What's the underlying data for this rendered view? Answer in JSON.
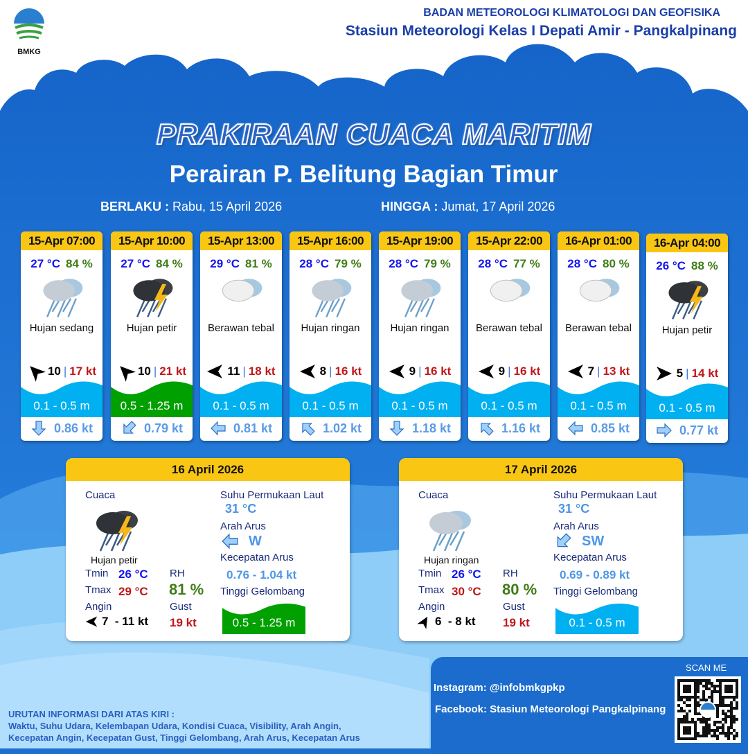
{
  "header": {
    "logo_text": "BMKG",
    "org": "BADAN METEOROLOGI KLIMATOLOGI DAN GEOFISIKA",
    "station": "Stasiun Meteorologi Kelas I Depati Amir - Pangkalpinang"
  },
  "title": "PRAKIRAAN CUACA MARITIM",
  "subtitle": "Perairan P. Belitung Bagian Timur",
  "validity": {
    "from_label": "BERLAKU :",
    "from": "Rabu, 15 April 2026",
    "to_label": "HINGGA :",
    "to": "Jumat, 17 April 2026"
  },
  "colors": {
    "wave_low": "#00b0f0",
    "wave_mid": "#00a000",
    "header_yellow": "#f9c713",
    "bg_blue": "#1e6fd0"
  },
  "forecasts": [
    {
      "time": "15-Apr 07:00",
      "temp": "27 °C",
      "rh": "84 %",
      "icon": "moderate-rain",
      "condition": "Hujan sedang",
      "wind_angle": 225,
      "wind": "10",
      "gust": "17 kt",
      "wave": "0.1 - 0.5 m",
      "wave_level": "low",
      "current_angle": 90,
      "current": "0.86 kt"
    },
    {
      "time": "15-Apr 10:00",
      "temp": "27 °C",
      "rh": "84 %",
      "icon": "thunderstorm",
      "condition": "Hujan petir",
      "wind_angle": 225,
      "wind": "10",
      "gust": "21 kt",
      "wave": "0.5 - 1.25 m",
      "wave_level": "mid",
      "current_angle": 135,
      "current": "0.79 kt"
    },
    {
      "time": "15-Apr 13:00",
      "temp": "29 °C",
      "rh": "81 %",
      "icon": "overcast",
      "condition": "Berawan tebal",
      "wind_angle": 180,
      "wind": "11",
      "gust": "18 kt",
      "wave": "0.1 - 0.5 m",
      "wave_level": "low",
      "current_angle": 180,
      "current": "0.81 kt"
    },
    {
      "time": "15-Apr 16:00",
      "temp": "28 °C",
      "rh": "79 %",
      "icon": "light-rain",
      "condition": "Hujan ringan",
      "wind_angle": 180,
      "wind": "8",
      "gust": "16 kt",
      "wave": "0.1 - 0.5 m",
      "wave_level": "low",
      "current_angle": 225,
      "current": "1.02 kt"
    },
    {
      "time": "15-Apr 19:00",
      "temp": "28 °C",
      "rh": "79 %",
      "icon": "light-rain",
      "condition": "Hujan ringan",
      "wind_angle": 180,
      "wind": "9",
      "gust": "16 kt",
      "wave": "0.1 - 0.5 m",
      "wave_level": "low",
      "current_angle": 90,
      "current": "1.18 kt"
    },
    {
      "time": "15-Apr 22:00",
      "temp": "28 °C",
      "rh": "77 %",
      "icon": "overcast",
      "condition": "Berawan tebal",
      "wind_angle": 180,
      "wind": "9",
      "gust": "16 kt",
      "wave": "0.1 - 0.5 m",
      "wave_level": "low",
      "current_angle": 225,
      "current": "1.16 kt"
    },
    {
      "time": "16-Apr 01:00",
      "temp": "28 °C",
      "rh": "80 %",
      "icon": "overcast",
      "condition": "Berawan tebal",
      "wind_angle": 180,
      "wind": "7",
      "gust": "13 kt",
      "wave": "0.1 - 0.5 m",
      "wave_level": "low",
      "current_angle": 180,
      "current": "0.85 kt"
    },
    {
      "time": "16-Apr 04:00",
      "temp": "26 °C",
      "rh": "88 %",
      "icon": "thunderstorm",
      "condition": "Hujan petir",
      "wind_angle": 0,
      "wind": "5",
      "gust": "14 kt",
      "wave": "0.1 - 0.5 m",
      "wave_level": "low",
      "current_angle": 0,
      "current": "0.77 kt"
    }
  ],
  "labels": {
    "weather": "Cuaca",
    "sst": "Suhu Permukaan Laut",
    "current_dir": "Arah Arus",
    "current_speed": "Kecepatan Arus",
    "wave": "Tinggi Gelombang",
    "tmin": "Tmin",
    "tmax": "Tmax",
    "rh": "RH",
    "wind": "Angin",
    "gust": "Gust"
  },
  "days": [
    {
      "date": "16 April 2026",
      "icon": "thunderstorm",
      "condition": "Hujan petir",
      "tmin": "26 °C",
      "tmax": "29 °C",
      "rh": "81 %",
      "wind_angle": 180,
      "wind": "7  - 11 kt",
      "gust": "19 kt",
      "sst": "31 °C",
      "current_angle": 180,
      "current_dir": "W",
      "current_speed": "0.76 - 1.04 kt",
      "wave": "0.5 - 1.25 m",
      "wave_level": "mid"
    },
    {
      "date": "17 April 2026",
      "icon": "light-rain",
      "condition": "Hujan ringan",
      "tmin": "26 °C",
      "tmax": "30 °C",
      "rh": "80 %",
      "wind_angle": 300,
      "wind": "6  - 8 kt",
      "gust": "19 kt",
      "sst": "31 °C",
      "current_angle": 135,
      "current_dir": "SW",
      "current_speed": "0.69 - 0.89 kt",
      "wave": "0.1 - 0.5 m",
      "wave_level": "low"
    }
  ],
  "social": {
    "scan": "SCAN ME",
    "instagram": "Instagram:  @infobmkgpkp",
    "facebook": "Facebook:  Stasiun  Meteorologi  Pangkalpinang"
  },
  "footer": {
    "heading": "URUTAN INFORMASI DARI ATAS KIRI :",
    "line1": "Waktu, Suhu Udara, Kelembapan Udara, Kondisi Cuaca, Visibility, Arah Angin,",
    "line2": "Kecepatan Angin, Kecepatan Gust, Tinggi Gelombang, Arah Arus, Kecepatan Arus"
  }
}
